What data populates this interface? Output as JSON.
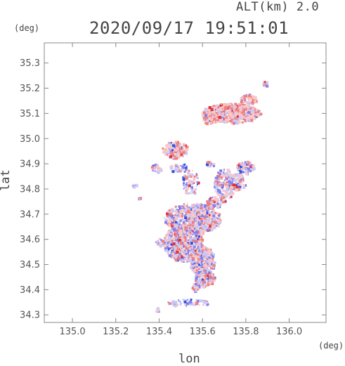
{
  "header": {
    "altitude": "ALT(km) 2.0",
    "datetime": "2020/09/17 19:51:01"
  },
  "axes": {
    "y_unit": "(deg)",
    "x_unit": "(deg)",
    "y_label": "lat",
    "x_label": "lon"
  },
  "chart_data": {
    "type": "map",
    "xlim": [
      134.87,
      136.17
    ],
    "ylim": [
      34.27,
      35.38
    ],
    "x_ticks": [
      "135.0",
      "135.2",
      "135.4",
      "135.6",
      "135.8",
      "136.0"
    ],
    "x_tick_values": [
      135.0,
      135.2,
      135.4,
      135.6,
      135.8,
      136.0
    ],
    "y_ticks": [
      "34.3",
      "34.4",
      "34.5",
      "34.6",
      "34.7",
      "34.8",
      "34.9",
      "35.0",
      "35.1",
      "35.2",
      "35.3"
    ],
    "y_tick_values": [
      34.3,
      34.4,
      34.5,
      34.6,
      34.7,
      34.8,
      34.9,
      35.0,
      35.1,
      35.2,
      35.3
    ],
    "grid": false,
    "colors": {
      "positive": "#f08080",
      "light_positive": "#f8c8c8",
      "negative": "#8080f0",
      "light_negative": "#c8c8f8",
      "strong_positive": "#e03030",
      "strong_negative": "#3050e0"
    }
  }
}
